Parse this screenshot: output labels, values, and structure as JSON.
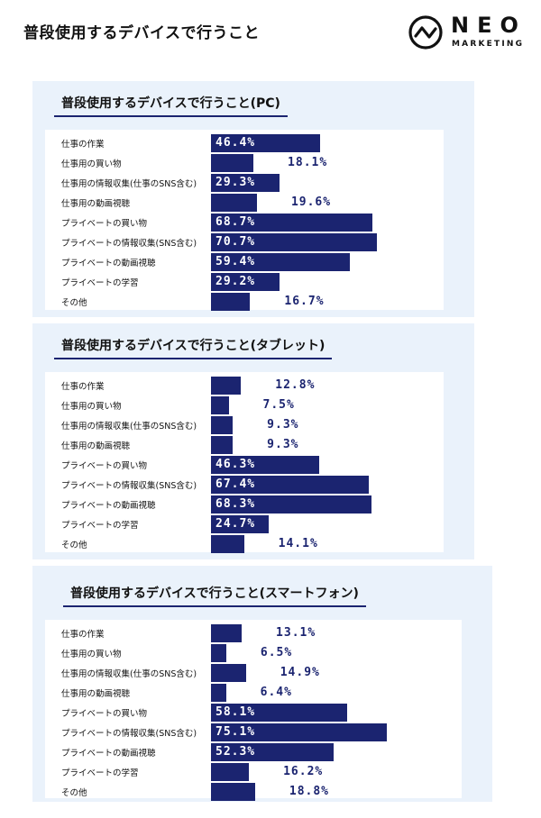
{
  "page": {
    "title": "普段使用するデバイスで行うこと",
    "logo_word": "NEO",
    "logo_sub": "MARKETING",
    "colors": {
      "bar": "#1b2470",
      "panel_bg": "#eaf2fb"
    }
  },
  "chart_data": [
    {
      "type": "bar",
      "orientation": "horizontal",
      "title": "普段使用するデバイスで行うこと(PC)",
      "unit": "%",
      "xlim": [
        0,
        100
      ],
      "categories": [
        "仕事の作業",
        "仕事用の買い物",
        "仕事用の情報収集(仕事のSNS含む)",
        "仕事用の動画視聴",
        "プライベートの買い物",
        "プライベートの情報収集(SNS含む)",
        "プライベートの動画視聴",
        "プライベートの学習",
        "その他"
      ],
      "values": [
        46.4,
        18.1,
        29.3,
        19.6,
        68.7,
        70.7,
        59.4,
        29.2,
        16.7
      ],
      "value_labels": [
        "46.4%",
        "18.1%",
        "29.3%",
        "19.6%",
        "68.7%",
        "70.7%",
        "59.4%",
        "29.2%",
        "16.7%"
      ]
    },
    {
      "type": "bar",
      "orientation": "horizontal",
      "title": "普段使用するデバイスで行うこと(タブレット)",
      "unit": "%",
      "xlim": [
        0,
        100
      ],
      "categories": [
        "仕事の作業",
        "仕事用の買い物",
        "仕事用の情報収集(仕事のSNS含む)",
        "仕事用の動画視聴",
        "プライベートの買い物",
        "プライベートの情報収集(SNS含む)",
        "プライベートの動画視聴",
        "プライベートの学習",
        "その他"
      ],
      "values": [
        12.8,
        7.5,
        9.3,
        9.3,
        46.3,
        67.4,
        68.3,
        24.7,
        14.1
      ],
      "value_labels": [
        "12.8%",
        "7.5%",
        "9.3%",
        "9.3%",
        "46.3%",
        "67.4%",
        "68.3%",
        "24.7%",
        "14.1%"
      ]
    },
    {
      "type": "bar",
      "orientation": "horizontal",
      "title": "普段使用するデバイスで行うこと(スマートフォン)",
      "unit": "%",
      "xlim": [
        0,
        100
      ],
      "categories": [
        "仕事の作業",
        "仕事用の買い物",
        "仕事用の情報収集(仕事のSNS含む)",
        "仕事用の動画視聴",
        "プライベートの買い物",
        "プライベートの情報収集(SNS含む)",
        "プライベートの動画視聴",
        "プライベートの学習",
        "その他"
      ],
      "values": [
        13.1,
        6.5,
        14.9,
        6.4,
        58.1,
        75.1,
        52.3,
        16.2,
        18.8
      ],
      "value_labels": [
        "13.1%",
        "6.5%",
        "14.9%",
        "6.4%",
        "58.1%",
        "75.1%",
        "52.3%",
        "16.2%",
        "18.8%"
      ]
    }
  ]
}
